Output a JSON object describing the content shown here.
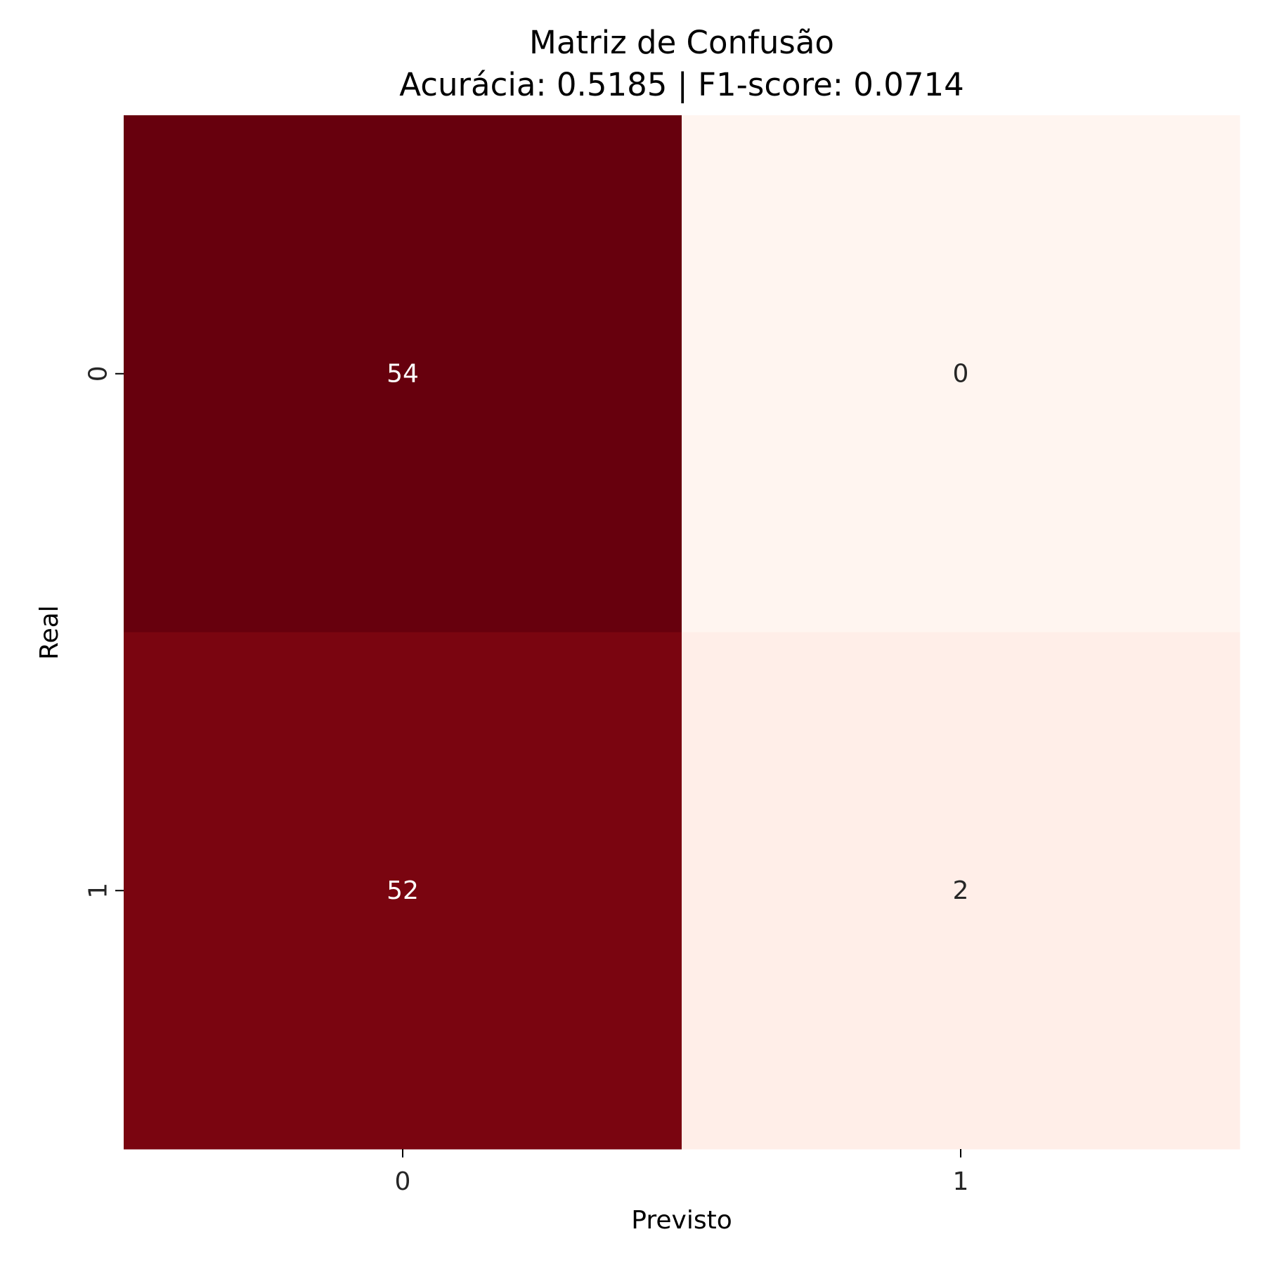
{
  "chart_data": {
    "type": "heatmap",
    "title": "Matriz de Confusão",
    "subtitle": "Acurácia: 0.5185 | F1-score: 0.0714",
    "xlabel": "Previsto",
    "ylabel": "Real",
    "x_categories": [
      "0",
      "1"
    ],
    "y_categories": [
      "0",
      "1"
    ],
    "values": [
      [
        54,
        0
      ],
      [
        52,
        2
      ]
    ],
    "colormap": "Reds",
    "colorbar": false,
    "cell_colors": [
      [
        "#67000d",
        "#fff5f0"
      ],
      [
        "#7a0510",
        "#ffeee8"
      ]
    ],
    "label_colors": [
      [
        "#ffffff",
        "#262626"
      ],
      [
        "#ffffff",
        "#262626"
      ]
    ]
  }
}
